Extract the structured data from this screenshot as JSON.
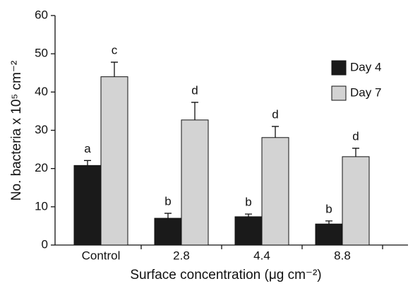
{
  "chart_data": {
    "type": "bar",
    "x_label": "Surface concentration (μg cm⁻²)",
    "y_label": "No. bacteria x 10⁵ cm⁻²",
    "categories": [
      "Control",
      "2.8",
      "4.4",
      "8.8"
    ],
    "series": [
      {
        "name": "Day 4",
        "color": "#1a1a1a",
        "values": [
          20.8,
          7.0,
          7.4,
          5.5
        ],
        "errors": [
          1.3,
          1.3,
          0.7,
          0.8
        ],
        "letters": [
          "a",
          "b",
          "b",
          "b"
        ]
      },
      {
        "name": "Day 7",
        "color": "#d3d3d3",
        "values": [
          44.0,
          32.7,
          28.1,
          23.1
        ],
        "errors": [
          3.8,
          4.6,
          2.9,
          2.2
        ],
        "letters": [
          "c",
          "d",
          "d",
          "d"
        ]
      }
    ],
    "ylim": [
      0,
      60
    ],
    "yticks": [
      0,
      10,
      20,
      30,
      40,
      50,
      60
    ],
    "grid": false,
    "legend": "upper right"
  }
}
